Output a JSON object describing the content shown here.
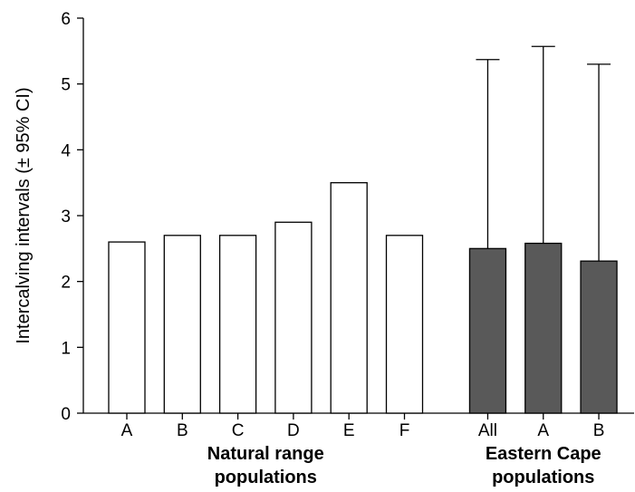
{
  "chart_data": {
    "type": "bar",
    "ylabel": "Intercalving intervals (± 95% CI)",
    "xlabel": "",
    "title": "",
    "ylim": [
      0,
      6
    ],
    "yticks": [
      0,
      1,
      2,
      3,
      4,
      5,
      6
    ],
    "grid": false,
    "colors": {
      "natural": "#ffffff",
      "eastern_cape": "#595959",
      "outline": "#000000"
    },
    "groups": [
      {
        "label_line1": "Natural range",
        "label_line2": "populations",
        "bars": [
          {
            "category": "A",
            "value": 2.6
          },
          {
            "category": "B",
            "value": 2.7
          },
          {
            "category": "C",
            "value": 2.7
          },
          {
            "category": "D",
            "value": 2.9
          },
          {
            "category": "E",
            "value": 3.5
          },
          {
            "category": "F",
            "value": 2.7
          }
        ]
      },
      {
        "label_line1": "Eastern Cape",
        "label_line2": "populations",
        "bars": [
          {
            "category": "All",
            "value": 2.5,
            "upper_ci": 5.37
          },
          {
            "category": "A",
            "value": 2.58,
            "upper_ci": 5.57
          },
          {
            "category": "B",
            "value": 2.31,
            "upper_ci": 5.3
          }
        ]
      }
    ]
  }
}
